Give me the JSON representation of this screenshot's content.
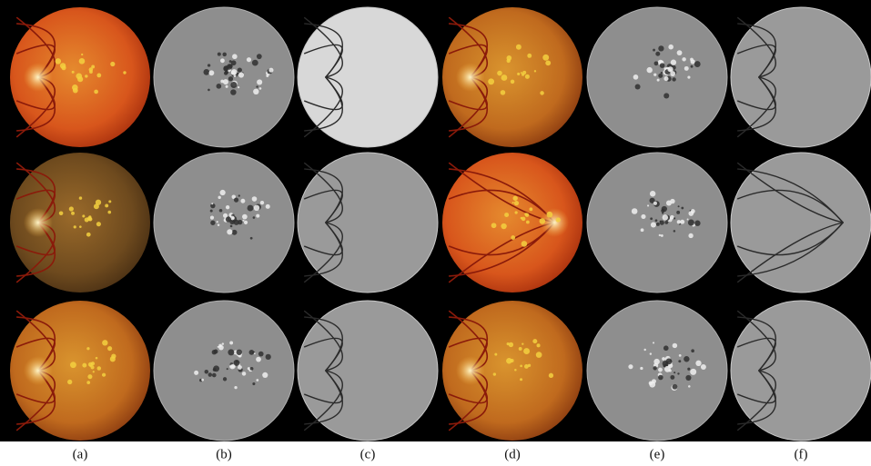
{
  "figure": {
    "panel_labels": [
      "(a)",
      "(b)",
      "(c)",
      "(d)",
      "(e)",
      "(f)"
    ]
  }
}
